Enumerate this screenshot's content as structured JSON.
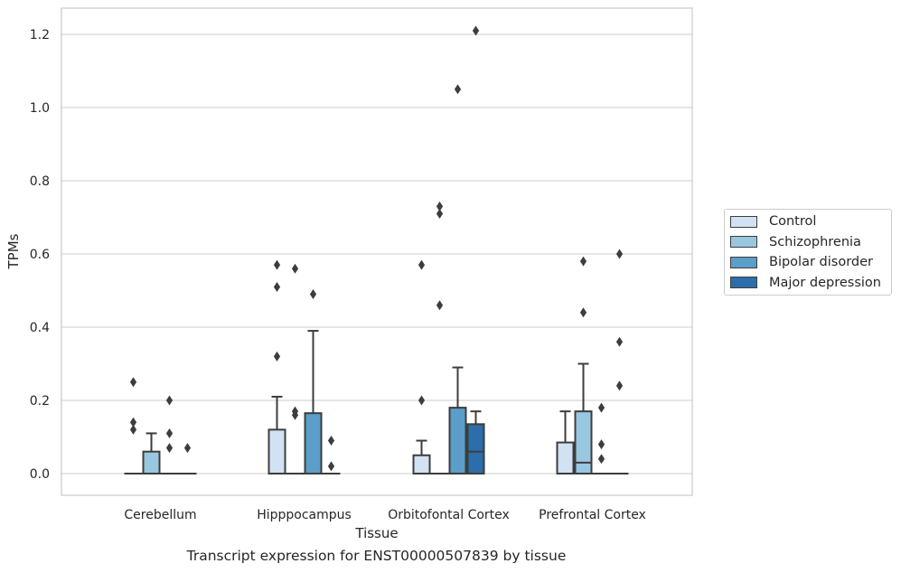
{
  "chart_data": {
    "type": "box",
    "title": "",
    "caption": "Transcript expression for ENST00000507839 by tissue",
    "xlabel": "Tissue",
    "ylabel": "TPMs",
    "ylim": [
      -0.06,
      1.27
    ],
    "yticks": [
      "0.0",
      "0.2",
      "0.4",
      "0.6",
      "0.8",
      "1.0",
      "1.2"
    ],
    "ytick_values": [
      0.0,
      0.2,
      0.4,
      0.6,
      0.8,
      1.0,
      1.2
    ],
    "grid": true,
    "legend_position": "right",
    "categories": [
      "Cerebellum",
      "Hipppocampus",
      "Orbitofontal Cortex",
      "Prefrontal Cortex"
    ],
    "series": [
      {
        "name": "Control",
        "color": "#d1e2f2",
        "boxes": [
          {
            "q1": 0,
            "median": 0,
            "q3": 0,
            "whisker_low": 0,
            "whisker_high": 0,
            "outliers": [
              0.25,
              0.14,
              0.12
            ]
          },
          {
            "q1": 0,
            "median": 0,
            "q3": 0.12,
            "whisker_low": 0,
            "whisker_high": 0.21,
            "outliers": [
              0.57,
              0.51,
              0.32
            ]
          },
          {
            "q1": 0,
            "median": 0,
            "q3": 0.05,
            "whisker_low": 0,
            "whisker_high": 0.09,
            "outliers": [
              0.57,
              0.2
            ]
          },
          {
            "q1": 0,
            "median": 0,
            "q3": 0.085,
            "whisker_low": 0,
            "whisker_high": 0.17,
            "outliers": []
          }
        ]
      },
      {
        "name": "Schizophrenia",
        "color": "#9ac7e0",
        "boxes": [
          {
            "q1": 0,
            "median": 0,
            "q3": 0.06,
            "whisker_low": 0,
            "whisker_high": 0.11,
            "outliers": []
          },
          {
            "q1": 0,
            "median": 0,
            "q3": 0,
            "whisker_low": 0,
            "whisker_high": 0,
            "outliers": [
              0.56,
              0.17,
              0.16
            ]
          },
          {
            "q1": 0,
            "median": 0,
            "q3": 0,
            "whisker_low": 0,
            "whisker_high": 0,
            "outliers": [
              0.73,
              0.71,
              0.46
            ]
          },
          {
            "q1": 0,
            "median": 0.03,
            "q3": 0.17,
            "whisker_low": 0,
            "whisker_high": 0.3,
            "outliers": [
              0.58,
              0.44
            ]
          }
        ]
      },
      {
        "name": "Bipolar disorder",
        "color": "#5a9ec9",
        "boxes": [
          {
            "q1": 0,
            "median": 0,
            "q3": 0,
            "whisker_low": 0,
            "whisker_high": 0,
            "outliers": [
              0.2,
              0.11,
              0.07
            ]
          },
          {
            "q1": 0,
            "median": 0,
            "q3": 0.165,
            "whisker_low": 0,
            "whisker_high": 0.39,
            "outliers": [
              0.49
            ]
          },
          {
            "q1": 0,
            "median": 0,
            "q3": 0.18,
            "whisker_low": 0,
            "whisker_high": 0.29,
            "outliers": [
              1.05
            ]
          },
          {
            "q1": 0,
            "median": 0,
            "q3": 0,
            "whisker_low": 0,
            "whisker_high": 0,
            "outliers": [
              0.18,
              0.08,
              0.04
            ]
          }
        ]
      },
      {
        "name": "Major depression",
        "color": "#2c6ea9",
        "boxes": [
          {
            "q1": 0,
            "median": 0,
            "q3": 0,
            "whisker_low": 0,
            "whisker_high": 0,
            "outliers": [
              0.07
            ]
          },
          {
            "q1": 0,
            "median": 0,
            "q3": 0,
            "whisker_low": 0,
            "whisker_high": 0,
            "outliers": [
              0.09,
              0.02
            ]
          },
          {
            "q1": 0,
            "median": 0.06,
            "q3": 0.135,
            "whisker_low": 0,
            "whisker_high": 0.17,
            "outliers": [
              1.21
            ]
          },
          {
            "q1": 0,
            "median": 0,
            "q3": 0,
            "whisker_low": 0,
            "whisker_high": 0,
            "outliers": [
              0.6,
              0.36,
              0.24
            ]
          }
        ]
      }
    ]
  }
}
